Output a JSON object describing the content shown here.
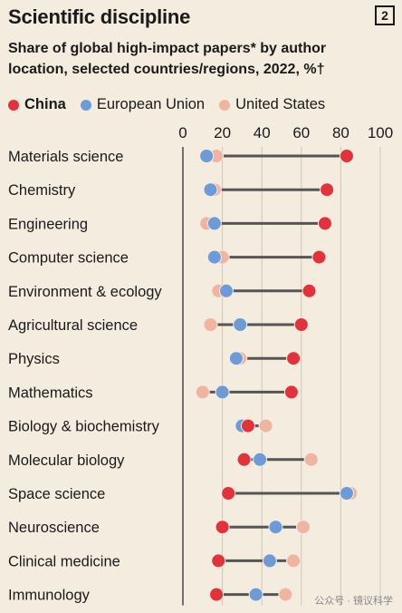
{
  "header": {
    "title": "Scientific discipline",
    "badge": "2",
    "subtitle": "Share of global high-impact papers* by author location, selected countries/regions, 2022, %†"
  },
  "legend": [
    {
      "label": "China",
      "color": "#e3323c",
      "bold": true
    },
    {
      "label": "European Union",
      "color": "#6c9bd8",
      "bold": false
    },
    {
      "label": "United States",
      "color": "#f0b4a1",
      "bold": false
    }
  ],
  "watermark": "公众号 · 镜议科学",
  "chart_data": {
    "type": "dot",
    "xlim": [
      0,
      100
    ],
    "ticks": [
      0,
      20,
      40,
      60,
      80,
      100
    ],
    "categories": [
      "Materials science",
      "Chemistry",
      "Engineering",
      "Computer science",
      "Environment & ecology",
      "Agricultural science",
      "Physics",
      "Mathematics",
      "Biology & biochemistry",
      "Molecular biology",
      "Space science",
      "Neuroscience",
      "Clinical medicine",
      "Immunology"
    ],
    "series": [
      {
        "name": "China",
        "color": "#e3323c",
        "values": [
          83,
          73,
          72,
          69,
          64,
          60,
          56,
          55,
          33,
          31,
          23,
          20,
          18,
          17
        ]
      },
      {
        "name": "European Union",
        "color": "#6c9bd8",
        "values": [
          12,
          14,
          16,
          16,
          22,
          29,
          27,
          20,
          30,
          39,
          83,
          47,
          44,
          37
        ]
      },
      {
        "name": "United States",
        "color": "#f0b4a1",
        "values": [
          17,
          16,
          12,
          20,
          18,
          14,
          29,
          10,
          42,
          65,
          85,
          61,
          56,
          52
        ]
      }
    ]
  }
}
